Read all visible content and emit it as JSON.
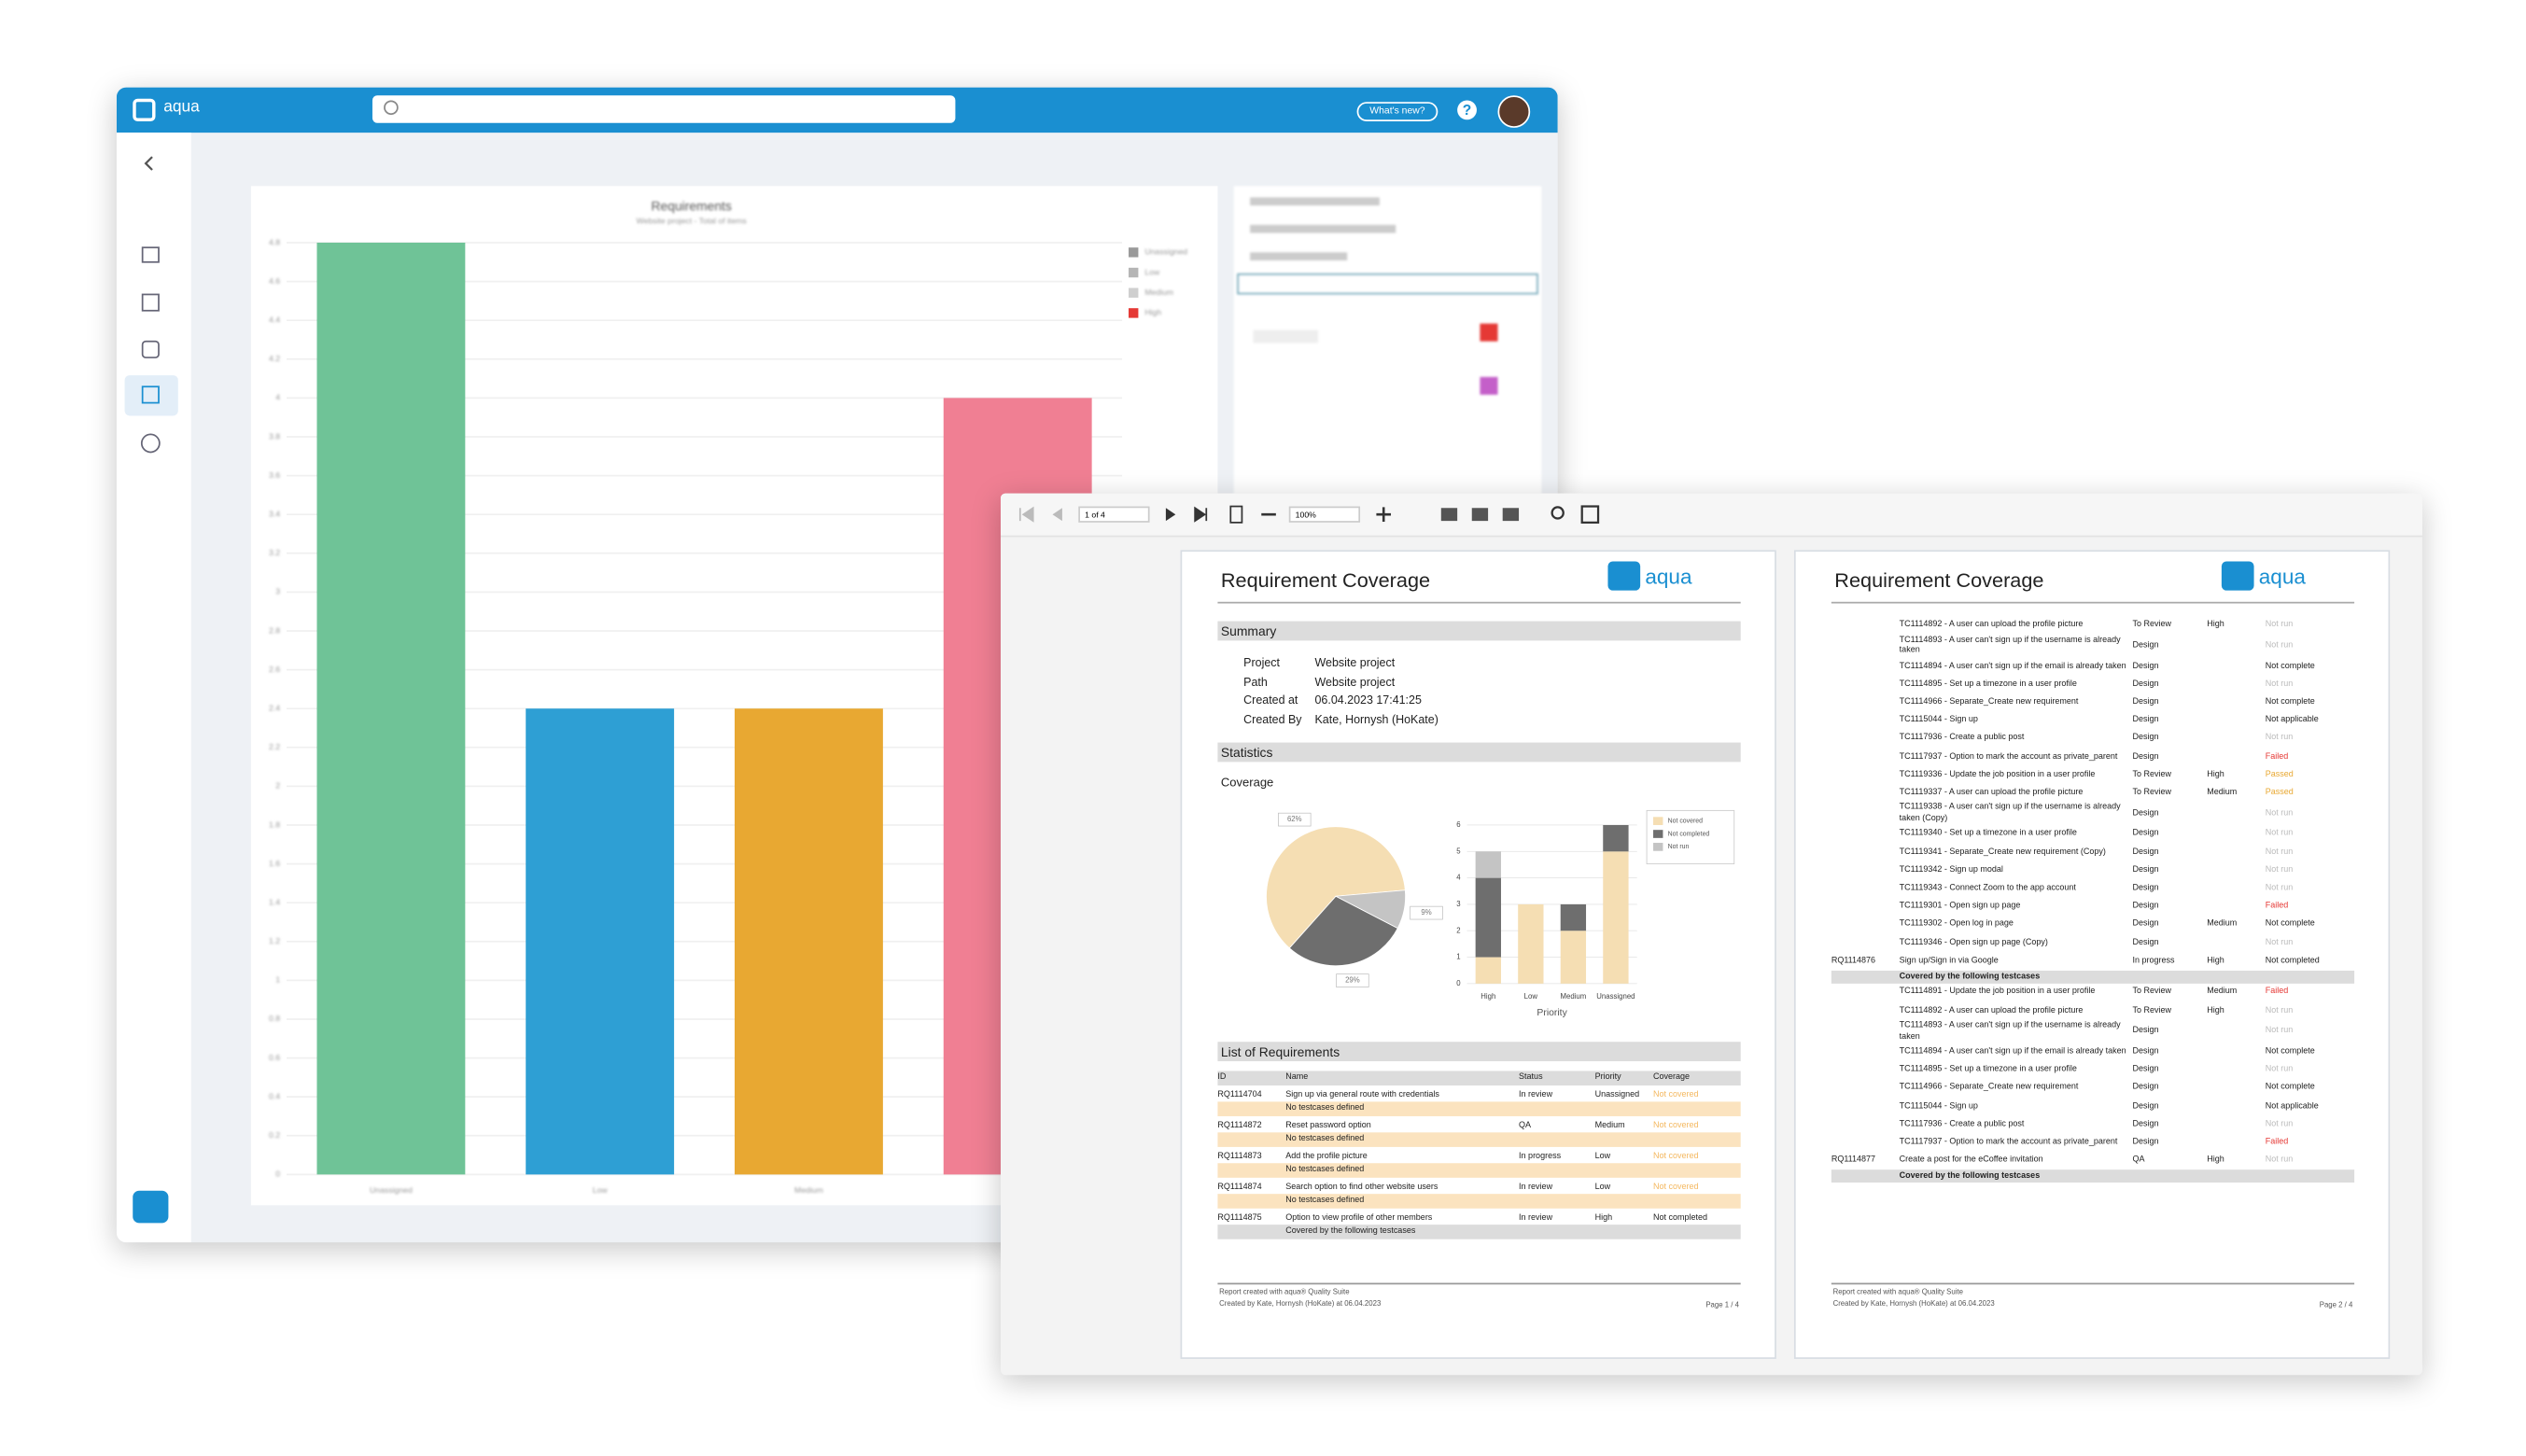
{
  "app": {
    "logo": "aqua",
    "whats_new": "What's new?",
    "help": "?"
  },
  "chart_data": [
    {
      "type": "bar",
      "title": "Requirements",
      "subtitle": "Website project - Total of items",
      "categories": [
        "Unassigned",
        "Low",
        "Medium",
        "High"
      ],
      "values": [
        4.8,
        2.4,
        2.4,
        4.0
      ],
      "colors": [
        "#6fc397",
        "#2e9fd4",
        "#e8a832",
        "#f07f93"
      ],
      "legend_colors": [
        "#9a9a9a",
        "#b5b5b5",
        "#cfcfcf",
        "#e53935"
      ],
      "ylim": [
        0,
        4.8
      ],
      "yticks": [
        0,
        0.2,
        0.4,
        0.6,
        0.8,
        1,
        1.2,
        1.4,
        1.6,
        1.8,
        2,
        2.2,
        2.4,
        2.6,
        2.8,
        3,
        3.2,
        3.4,
        3.6,
        3.8,
        4,
        4.2,
        4.4,
        4.6,
        4.8
      ],
      "grid": true,
      "legend": "top-right"
    },
    {
      "type": "pie",
      "categories": [
        "Not covered",
        "Not completed",
        "Not run"
      ],
      "values": [
        62,
        29,
        9
      ],
      "value_labels": [
        "62%",
        "29%",
        "9%"
      ],
      "colors": [
        "#f5deb3",
        "#6e6e6e",
        "#c4c4c4"
      ]
    },
    {
      "type": "stacked_bar",
      "x_label": "Priority",
      "categories": [
        "High",
        "Low",
        "Medium",
        "Unassigned"
      ],
      "series": [
        {
          "name": "Not covered",
          "color": "#f5deb3",
          "values": [
            1,
            3,
            2,
            5
          ]
        },
        {
          "name": "Not completed",
          "color": "#6e6e6e",
          "values": [
            3,
            0,
            1,
            1
          ]
        },
        {
          "name": "Not run",
          "color": "#c4c4c4",
          "values": [
            1,
            0,
            0,
            0
          ]
        }
      ],
      "ylim": [
        0,
        6
      ],
      "yticks": [
        0,
        1,
        2,
        3,
        4,
        5,
        6
      ],
      "grid": true,
      "legend": "top-right"
    }
  ],
  "viewer": {
    "page_indicator": "1 of 4",
    "zoom": "100%"
  },
  "report_page_1": {
    "title": "Requirement Coverage",
    "logo": "aqua",
    "summary_heading": "Summary",
    "summary": [
      [
        "Project",
        "Website project"
      ],
      [
        "Path",
        "Website project"
      ],
      [
        "Created at",
        "06.04.2023 17:41:25"
      ],
      [
        "Created By",
        "Kate, Hornysh (HoKate)"
      ]
    ],
    "statistics_heading": "Statistics",
    "coverage_heading": "Coverage",
    "list_heading": "List of Requirements",
    "columns": [
      "ID",
      "Name",
      "Status",
      "Priority",
      "Coverage"
    ],
    "rows": [
      {
        "id": "RQ1114704",
        "name": "Sign up via general route with credentials",
        "status": "In review",
        "priority": "Unassigned",
        "coverage": "Not covered",
        "note": "No testcases defined"
      },
      {
        "id": "RQ1114872",
        "name": "Reset password option",
        "status": "QA",
        "priority": "Medium",
        "coverage": "Not covered",
        "note": "No testcases defined"
      },
      {
        "id": "RQ1114873",
        "name": "Add the profile picture",
        "status": "In progress",
        "priority": "Low",
        "coverage": "Not covered",
        "note": "No testcases defined"
      },
      {
        "id": "RQ1114874",
        "name": "Search option to find other website users",
        "status": "In review",
        "priority": "Low",
        "coverage": "Not covered",
        "note": "No testcases defined"
      },
      {
        "id": "RQ1114875",
        "name": "Option to view profile of other members",
        "status": "In review",
        "priority": "High",
        "coverage": "Not completed",
        "note": "Covered by the following testcases"
      }
    ],
    "footer_left": "Report created with aqua® Quality Suite",
    "footer_left_2": "Created by Kate, Hornysh (HoKate) at 06.04.2023",
    "footer_right": "Page 1 / 4"
  },
  "report_page_2": {
    "title": "Requirement Coverage",
    "logo": "aqua",
    "rows": [
      {
        "name": "TC1114892 - A user can upload the profile picture",
        "status": "To Review",
        "priority": "High",
        "result": "Not run"
      },
      {
        "name": "TC1114893 - A user can't sign up if the username is already taken",
        "status": "Design",
        "result": "Not run"
      },
      {
        "name": "TC1114894 - A user can't sign up if the email is already taken",
        "status": "Design",
        "result": "Not complete"
      },
      {
        "name": "TC1114895 - Set up a timezone in a user profile",
        "status": "Design",
        "result": "Not run"
      },
      {
        "name": "TC1114966 - Separate_Create new requirement",
        "status": "Design",
        "result": "Not complete"
      },
      {
        "name": "TC1115044 - Sign up",
        "status": "Design",
        "result": "Not applicable"
      },
      {
        "name": "TC1117936 - Create a public post",
        "status": "Design",
        "result": "Not run"
      },
      {
        "name": "TC1117937 - Option to mark the account as private_parent",
        "status": "Design",
        "result": "Failed"
      },
      {
        "name": "TC1119336 - Update the job position in a user profile",
        "status": "To Review",
        "priority": "High",
        "result": "Passed"
      },
      {
        "name": "TC1119337 - A user can upload the profile picture",
        "status": "To Review",
        "priority": "Medium",
        "result": "Passed"
      },
      {
        "name": "TC1119338 - A user can't sign up if the username is already taken (Copy)",
        "status": "Design",
        "result": "Not run"
      },
      {
        "name": "TC1119340 - Set up a timezone in a user profile",
        "status": "Design",
        "result": "Not run"
      },
      {
        "name": "TC1119341 - Separate_Create new requirement (Copy)",
        "status": "Design",
        "result": "Not run"
      },
      {
        "name": "TC1119342 - Sign up modal",
        "status": "Design",
        "result": "Not run"
      },
      {
        "name": "TC1119343 - Connect Zoom to the app account",
        "status": "Design",
        "result": "Not run"
      },
      {
        "name": "TC1119301 - Open sign up page",
        "status": "Design",
        "result": "Failed"
      },
      {
        "name": "TC1119302 - Open log in page",
        "status": "Design",
        "priority": "Medium",
        "result": "Not complete"
      },
      {
        "name": "TC1119346 - Open sign up page (Copy)",
        "status": "Design",
        "result": "Not run"
      },
      {
        "id": "RQ1114876",
        "name": "Sign up/Sign in via Google",
        "status": "In progress",
        "priority": "High",
        "result": "Not completed"
      },
      {
        "note": "Covered by the following testcases"
      },
      {
        "name": "TC1114891 - Update the job position in a user profile",
        "status": "To Review",
        "priority": "Medium",
        "result": "Failed"
      },
      {
        "name": "TC1114892 - A user can upload the profile picture",
        "status": "To Review",
        "priority": "High",
        "result": "Not run"
      },
      {
        "name": "TC1114893 - A user can't sign up if the username is already taken",
        "status": "Design",
        "result": "Not run"
      },
      {
        "name": "TC1114894 - A user can't sign up if the email is already taken",
        "status": "Design",
        "result": "Not complete"
      },
      {
        "name": "TC1114895 - Set up a timezone in a user profile",
        "status": "Design",
        "result": "Not run"
      },
      {
        "name": "TC1114966 - Separate_Create new requirement",
        "status": "Design",
        "result": "Not complete"
      },
      {
        "name": "TC1115044 - Sign up",
        "status": "Design",
        "result": "Not applicable"
      },
      {
        "name": "TC1117936 - Create a public post",
        "status": "Design",
        "result": "Not run"
      },
      {
        "name": "TC1117937 - Option to mark the account as private_parent",
        "status": "Design",
        "result": "Failed"
      },
      {
        "id": "RQ1114877",
        "name": "Create a post for the eCoffee invitation",
        "status": "QA",
        "priority": "High",
        "result": "Not run"
      },
      {
        "note": "Covered by the following testcases"
      }
    ],
    "footer_left": "Report created with aqua® Quality Suite",
    "footer_left_2": "Created by Kate, Hornysh (HoKate) at 06.04.2023",
    "footer_right": "Page 2 / 4"
  }
}
